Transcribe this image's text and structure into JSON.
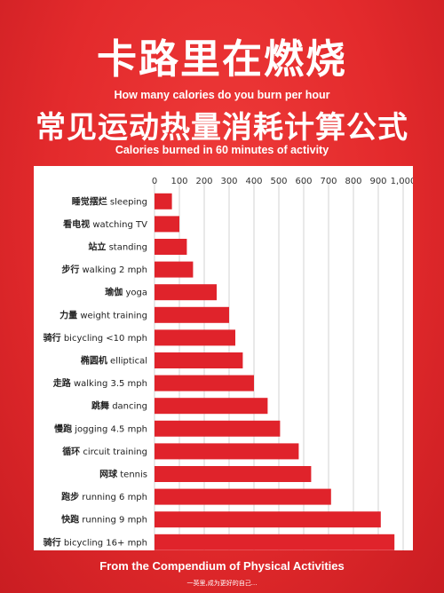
{
  "header": {
    "title_zh": "卡路里在燃烧",
    "subtitle_en": "How many calories do you burn per hour",
    "title2_zh": "常见运动热量消耗计算公式",
    "subtitle2_en": "Calories burned in 60 minutes of activity"
  },
  "footer": {
    "source": "From the Compendium of Physical Activities",
    "note": "一英里,成为更好的自己..."
  },
  "colors": {
    "background": "#e32a2c",
    "bar": "#e0232b",
    "panel": "#ffffff",
    "grid": "#c8c8c8"
  },
  "chart_data": {
    "type": "bar",
    "orientation": "horizontal",
    "xlim": [
      0,
      1000
    ],
    "ticks": [
      0,
      100,
      200,
      300,
      400,
      500,
      600,
      700,
      800,
      900,
      1000
    ],
    "tick_labels": [
      "0",
      "100",
      "200",
      "300",
      "400",
      "500",
      "600",
      "700",
      "800",
      "900",
      "1,000"
    ],
    "grid": true,
    "categories": [
      {
        "zh": "睡觉摆烂",
        "en": "sleeping",
        "value": 70
      },
      {
        "zh": "看电视",
        "en": "watching TV",
        "value": 100
      },
      {
        "zh": "站立",
        "en": "standing",
        "value": 130
      },
      {
        "zh": "步行",
        "en": "walking 2 mph",
        "value": 155
      },
      {
        "zh": "瑜伽",
        "en": "yoga",
        "value": 250
      },
      {
        "zh": "力量",
        "en": "weight training",
        "value": 300
      },
      {
        "zh": "骑行",
        "en": "bicycling <10 mph",
        "value": 325
      },
      {
        "zh": "椭圆机",
        "en": "elliptical",
        "value": 355
      },
      {
        "zh": "走路",
        "en": "walking 3.5 mph",
        "value": 400
      },
      {
        "zh": "跳舞",
        "en": "dancing",
        "value": 455
      },
      {
        "zh": "慢跑",
        "en": "jogging 4.5 mph",
        "value": 505
      },
      {
        "zh": "循环",
        "en": "circuit training",
        "value": 580
      },
      {
        "zh": "网球",
        "en": "tennis",
        "value": 630
      },
      {
        "zh": "跑步",
        "en": "running 6 mph",
        "value": 710
      },
      {
        "zh": "快跑",
        "en": "running 9 mph",
        "value": 910
      },
      {
        "zh": "骑行",
        "en": "bicycling 16+ mph",
        "value": 965
      }
    ]
  }
}
